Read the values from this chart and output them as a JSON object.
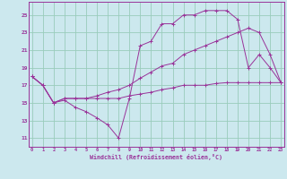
{
  "xlabel": "Windchill (Refroidissement éolien,°C)",
  "bg_color": "#cce8ee",
  "grid_color": "#99ccbb",
  "line_color": "#993399",
  "x_ticks": [
    0,
    1,
    2,
    3,
    4,
    5,
    6,
    7,
    8,
    9,
    10,
    11,
    12,
    13,
    14,
    15,
    16,
    17,
    18,
    19,
    20,
    21,
    22,
    23
  ],
  "y_ticks": [
    11,
    13,
    15,
    17,
    19,
    21,
    23,
    25
  ],
  "xlim": [
    -0.3,
    23.3
  ],
  "ylim": [
    10.0,
    26.5
  ],
  "s1_x": [
    0,
    1,
    2,
    3,
    4,
    5,
    6,
    7,
    8,
    9,
    10,
    11,
    12,
    13,
    14,
    15,
    16,
    17,
    18,
    19,
    20,
    21,
    22,
    23
  ],
  "s1_y": [
    18.0,
    17.0,
    15.0,
    15.5,
    15.5,
    15.5,
    15.5,
    15.5,
    15.5,
    15.8,
    16.0,
    16.2,
    16.5,
    16.7,
    17.0,
    17.0,
    17.0,
    17.2,
    17.3,
    17.3,
    17.3,
    17.3,
    17.3,
    17.3
  ],
  "s2_x": [
    0,
    1,
    2,
    3,
    4,
    5,
    6,
    7,
    8,
    9,
    10,
    11,
    12,
    13,
    14,
    15,
    16,
    17,
    18,
    19,
    20,
    21,
    22,
    23
  ],
  "s2_y": [
    18.0,
    17.0,
    15.0,
    15.5,
    15.5,
    15.5,
    15.8,
    16.2,
    16.5,
    17.0,
    17.8,
    18.5,
    19.2,
    19.5,
    20.5,
    21.0,
    21.5,
    22.0,
    22.5,
    23.0,
    23.5,
    23.0,
    20.5,
    17.3
  ],
  "s3_x": [
    0,
    1,
    2,
    3,
    4,
    5,
    6,
    7,
    8,
    9,
    10,
    11,
    12,
    13,
    14,
    15,
    16,
    17,
    18,
    19,
    20,
    21,
    22,
    23
  ],
  "s3_y": [
    18.0,
    17.0,
    15.0,
    15.3,
    14.5,
    14.0,
    13.3,
    12.5,
    11.0,
    15.5,
    21.5,
    22.0,
    24.0,
    24.0,
    25.0,
    25.0,
    25.5,
    25.5,
    25.5,
    24.5,
    19.0,
    20.5,
    19.0,
    17.3
  ]
}
